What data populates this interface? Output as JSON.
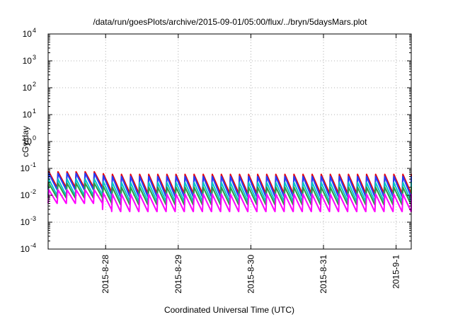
{
  "chart_data": {
    "type": "line",
    "title": "/data/run/goesPlots/archive/2015-09-01/05:00/flux/../bryn/5daysMars.plot",
    "xlabel": "Coordinated Universal Time (UTC)",
    "ylabel": "cGy/day",
    "y_scale": "log",
    "ylim": [
      0.0001,
      10000
    ],
    "y_ticks": [
      {
        "value": 0.0001,
        "base": "10",
        "exp": "-4"
      },
      {
        "value": 0.001,
        "base": "10",
        "exp": "-3"
      },
      {
        "value": 0.01,
        "base": "10",
        "exp": "-2"
      },
      {
        "value": 0.1,
        "base": "10",
        "exp": "-1"
      },
      {
        "value": 1,
        "base": "10",
        "exp": "0"
      },
      {
        "value": 10,
        "base": "10",
        "exp": "1"
      },
      {
        "value": 100,
        "base": "10",
        "exp": "2"
      },
      {
        "value": 1000,
        "base": "10",
        "exp": "3"
      },
      {
        "value": 10000,
        "base": "10",
        "exp": "4"
      }
    ],
    "xlim": [
      "2015-08-27 05:00",
      "2015-09-01 05:00"
    ],
    "x_ticks": [
      "2015-8-28",
      "2015-8-29",
      "2015-8-30",
      "2015-8-31",
      "2015-9-1"
    ],
    "x_tick_values": [
      "2015-08-28 00:00",
      "2015-08-29 00:00",
      "2015-08-30 00:00",
      "2015-08-31 00:00",
      "2015-09-01 00:00"
    ],
    "grid": true,
    "pattern": "sawtooth",
    "cycle_hours": 3,
    "series": [
      {
        "color": "#e8000b",
        "peak": 0.06,
        "trough": 0.012,
        "early_peak": 0.075,
        "early_trough": 0.02
      },
      {
        "color": "#1f3fff",
        "peak": 0.05,
        "trough": 0.009,
        "early_peak": 0.065,
        "early_trough": 0.016
      },
      {
        "color": "#00c8c8",
        "peak": 0.03,
        "trough": 0.006,
        "early_peak": 0.04,
        "early_trough": 0.01
      },
      {
        "color": "#2e9a48",
        "peak": 0.02,
        "trough": 0.0045,
        "early_peak": 0.028,
        "early_trough": 0.008
      },
      {
        "color": "#ff00ff",
        "peak": 0.011,
        "trough": 0.0025,
        "early_peak": 0.016,
        "early_trough": 0.005
      }
    ]
  }
}
